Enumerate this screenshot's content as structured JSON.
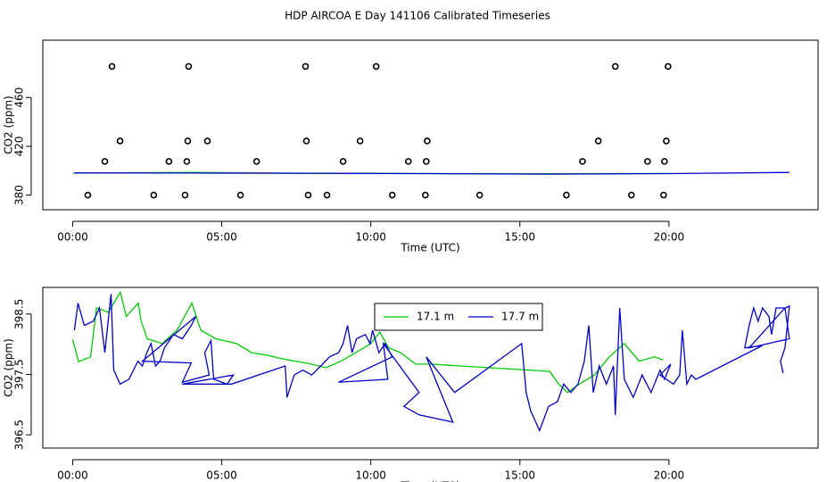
{
  "title": "HDP AIRCOA E  Day 141106  Calibrated Timeseries",
  "chart_data": [
    {
      "type": "scatter",
      "ylabel": "CO2 (ppm)",
      "xlabel": "Time (UTC)",
      "xlim": [
        -1,
        25
      ],
      "ylim": [
        368,
        507
      ],
      "xticks": [
        {
          "value": 0,
          "label": "00:00"
        },
        {
          "value": 5,
          "label": "05:00"
        },
        {
          "value": 10,
          "label": "10:00"
        },
        {
          "value": 15,
          "label": "15:00"
        },
        {
          "value": 20,
          "label": "20:00"
        }
      ],
      "yticks": [
        380,
        420,
        460
      ],
      "series": [
        {
          "color": "#000000",
          "x": [
            1.32,
            3.89,
            7.81,
            10.18,
            18.2,
            19.97,
            1.59,
            3.86,
            4.52,
            7.84,
            9.64,
            11.89,
            17.63,
            19.91,
            1.08,
            3.23,
            3.83,
            6.17,
            9.07,
            11.26,
            11.86,
            17.1,
            19.28,
            19.85,
            0.51,
            2.72,
            3.77,
            5.63,
            7.9,
            8.53,
            10.72,
            11.83,
            13.65,
            16.56,
            18.74,
            19.82
          ],
          "values": [
            485.5,
            485.5,
            485.5,
            485.5,
            485.5,
            485.5,
            424.4,
            424.4,
            424.4,
            424.4,
            424.4,
            424.4,
            424.4,
            424.4,
            407.6,
            407.6,
            407.6,
            407.6,
            407.6,
            407.6,
            407.6,
            407.6,
            407.6,
            407.6,
            380,
            380,
            380,
            380,
            380,
            380,
            380,
            380,
            380,
            380,
            380,
            380
          ]
        },
        {
          "type": "line",
          "color": "#00cc00",
          "x": [
            0,
            4,
            8,
            12,
            16,
            20
          ],
          "values": [
            398.1,
            398.6,
            397.8,
            397.6,
            397.5,
            397.7
          ]
        },
        {
          "type": "line",
          "color": "#0000cc",
          "x": [
            0.06,
            4,
            8,
            12,
            16,
            20,
            24.04
          ],
          "values": [
            398.2,
            398.1,
            397.9,
            397.6,
            397.2,
            397.6,
            398.6
          ]
        }
      ]
    },
    {
      "type": "line",
      "ylabel": "CO2 (ppm)",
      "xlabel": "Time (UTC)",
      "legend": "top",
      "xlim": [
        -1,
        25
      ],
      "ylim": [
        396.28,
        398.94
      ],
      "xticks": [
        {
          "value": 0,
          "label": "00:00"
        },
        {
          "value": 5,
          "label": "05:00"
        },
        {
          "value": 10,
          "label": "10:00"
        },
        {
          "value": 15,
          "label": "15:00"
        },
        {
          "value": 20,
          "label": "20:00"
        }
      ],
      "yticks": [
        396.5,
        397.5,
        398.5
      ],
      "series": [
        {
          "name": "17.1 m",
          "color": "#00cc00",
          "x": [
            0,
            0.2,
            0.6,
            0.8,
            1.2,
            1.6,
            1.8,
            2.2,
            2.3,
            2.5,
            3,
            3.5,
            4,
            4.3,
            4.8,
            5.5,
            6,
            6.5,
            7,
            8,
            8.5,
            9,
            9.5,
            10,
            10.3,
            10.6,
            11,
            11.5,
            12,
            13,
            14,
            15,
            16,
            16.3,
            16.6,
            17,
            17.5,
            18,
            18.5,
            19,
            19.5,
            19.8
          ],
          "values": [
            398.08,
            397.71,
            397.79,
            398.6,
            398.53,
            398.86,
            398.46,
            398.68,
            398.38,
            398.09,
            398.01,
            398.23,
            398.68,
            398.23,
            398.09,
            398.01,
            397.86,
            397.82,
            397.76,
            397.67,
            397.61,
            397.72,
            397.86,
            398.01,
            398.2,
            397.94,
            397.86,
            397.67,
            397.67,
            397.64,
            397.61,
            397.58,
            397.55,
            397.34,
            397.2,
            397.34,
            397.49,
            397.79,
            398.01,
            397.72,
            397.79,
            397.74
          ]
        },
        {
          "name": "17.7 m",
          "color": "#0000cc",
          "x": [
            0.06,
            0.18,
            0.39,
            0.69,
            0.9,
            1.08,
            1.29,
            1.38,
            1.59,
            1.89,
            2.19,
            2.34,
            2.49,
            2.63,
            2.78,
            2.93,
            3.08,
            3.38,
            3.68,
            3.98,
            4.13,
            2.34,
            3.98,
            3.68,
            4.58,
            4.43,
            4.64,
            4.73,
            5.18,
            5.39,
            3.68,
            5.33,
            7.13,
            7.19,
            7.43,
            7.72,
            8.02,
            8.32,
            8.62,
            8.92,
            9.07,
            9.22,
            9.37,
            9.52,
            9.82,
            9.97,
            10.06,
            10.27,
            10.48,
            10.72,
            8.92,
            10.57,
            10.42,
            11.62,
            11.11,
            11.62,
            12.75,
            11.86,
            12.81,
            15.06,
            15.21,
            15.36,
            15.66,
            15.96,
            16.26,
            16.47,
            16.71,
            16.95,
            17.16,
            17.31,
            17.46,
            17.66,
            17.9,
            18.14,
            18.2,
            18.35,
            18.5,
            18.8,
            19.1,
            19.4,
            19.7,
            19.85,
            20.06,
            19.7,
            20.15,
            20.36,
            20.45,
            20.6,
            20.75,
            20.9,
            23.14,
            22.54,
            22.69,
            22.84,
            22.99,
            23.14,
            23.35,
            23.44,
            23.59,
            23.89,
            24.04,
            22.69,
            23.89,
            24.04,
            23.89,
            23.74,
            23.83
          ],
          "values": [
            398.23,
            398.68,
            398.31,
            398.38,
            398.6,
            397.86,
            398.83,
            397.57,
            397.34,
            397.42,
            397.72,
            397.64,
            397.86,
            398.01,
            397.64,
            397.72,
            397.94,
            398.16,
            398.09,
            398.31,
            398.46,
            397.72,
            397.69,
            397.37,
            397.49,
            397.86,
            398.06,
            397.42,
            397.34,
            397.49,
            397.34,
            397.34,
            397.64,
            397.12,
            397.49,
            397.57,
            397.49,
            397.64,
            397.79,
            397.86,
            398.01,
            398.31,
            397.86,
            398.09,
            398.16,
            398.01,
            398.23,
            397.86,
            398.01,
            397.79,
            397.37,
            397.42,
            398.01,
            397.2,
            396.97,
            396.83,
            396.71,
            397.79,
            397.2,
            398.01,
            397.2,
            396.9,
            396.57,
            396.97,
            397.05,
            397.34,
            397.2,
            397.34,
            397.72,
            398.31,
            397.2,
            397.64,
            397.34,
            397.64,
            396.83,
            398.6,
            397.42,
            397.12,
            397.49,
            397.2,
            397.57,
            397.42,
            397.67,
            397.49,
            397.34,
            397.49,
            398.23,
            397.34,
            397.49,
            397.42,
            397.98,
            397.94,
            398.31,
            398.6,
            398.38,
            398.6,
            398.46,
            398.16,
            398.6,
            398.6,
            398.09,
            397.94,
            398.6,
            398.63,
            397.94,
            397.72,
            397.52
          ]
        }
      ]
    }
  ]
}
